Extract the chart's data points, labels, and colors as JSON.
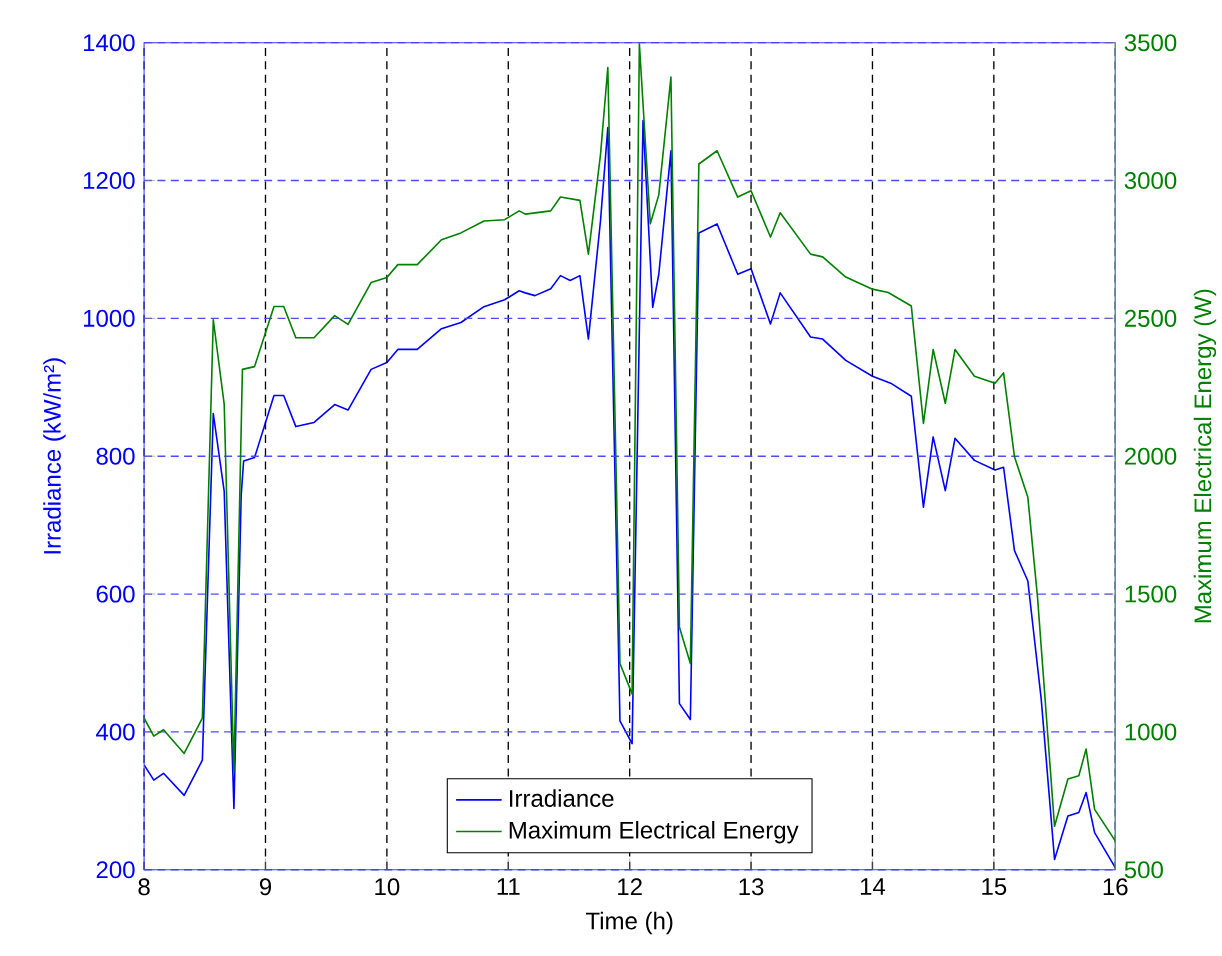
{
  "chart_data": {
    "type": "line",
    "xlabel": "Time (h)",
    "ylabel": "Irradiance (kW/m²)",
    "y2label": "Maximum Electrical Energy (W)",
    "xlim": [
      8,
      16
    ],
    "xticks": [
      8,
      9,
      10,
      11,
      12,
      13,
      14,
      15,
      16
    ],
    "ylim": [
      200,
      1400
    ],
    "yticks": [
      200,
      400,
      600,
      800,
      1000,
      1200,
      1400
    ],
    "y2lim": [
      500,
      3500
    ],
    "y2ticks": [
      500,
      1000,
      1500,
      2000,
      2500,
      3000,
      3500
    ],
    "grid": true,
    "legend": "bottom",
    "series": [
      {
        "name": "Irradiance",
        "color": "#0000ff",
        "x": [
          8.0,
          8.08,
          8.16,
          8.33,
          8.48,
          8.57,
          8.66,
          8.74,
          8.8,
          8.82,
          8.91,
          9.07,
          9.15,
          9.25,
          9.4,
          9.57,
          9.68,
          9.87,
          10.0,
          10.09,
          10.25,
          10.45,
          10.61,
          10.8,
          10.97,
          11.09,
          11.14,
          11.22,
          11.35,
          11.43,
          11.51,
          11.59,
          11.66,
          11.76,
          11.82,
          11.89,
          11.92,
          12.02,
          12.11,
          12.19,
          12.24,
          12.34,
          12.41,
          12.5,
          12.57,
          12.72,
          12.89,
          13.0,
          13.16,
          13.24,
          13.49,
          13.59,
          13.78,
          14.0,
          14.15,
          14.32,
          14.42,
          14.5,
          14.6,
          14.68,
          14.84,
          15.01,
          15.08,
          15.17,
          15.28,
          15.39,
          15.5,
          15.61,
          15.7,
          15.76,
          15.83,
          16.0
        ],
        "values": [
          352,
          330,
          340,
          308,
          359,
          862,
          749,
          289,
          744,
          793,
          798,
          888,
          888,
          843,
          849,
          875,
          867,
          926,
          936,
          955,
          955,
          985,
          994,
          1017,
          1027,
          1040,
          1037,
          1033,
          1043,
          1062,
          1055,
          1062,
          970,
          1142,
          1277,
          678,
          416,
          383,
          1287,
          1016,
          1064,
          1243,
          441,
          418,
          1124,
          1137,
          1064,
          1072,
          992,
          1037,
          973,
          970,
          939,
          916,
          906,
          887,
          726,
          828,
          750,
          826,
          794,
          780,
          784,
          663,
          619,
          448,
          215,
          278,
          283,
          312,
          254,
          203
        ]
      },
      {
        "name": "Maximum Electrical Energy",
        "color": "#008000",
        "axis": "y2",
        "x": [
          8.0,
          8.08,
          8.16,
          8.33,
          8.48,
          8.57,
          8.66,
          8.74,
          8.81,
          8.91,
          9.07,
          9.15,
          9.25,
          9.4,
          9.57,
          9.68,
          9.87,
          10.0,
          10.09,
          10.25,
          10.45,
          10.61,
          10.8,
          10.97,
          11.09,
          11.14,
          11.35,
          11.43,
          11.59,
          11.66,
          11.76,
          11.82,
          11.89,
          11.92,
          12.02,
          12.08,
          12.17,
          12.24,
          12.34,
          12.41,
          12.5,
          12.57,
          12.72,
          12.89,
          13.0,
          13.16,
          13.24,
          13.49,
          13.59,
          13.78,
          14.0,
          14.13,
          14.32,
          14.42,
          14.5,
          14.6,
          14.68,
          14.84,
          15.01,
          15.08,
          15.17,
          15.28,
          15.36,
          15.5,
          15.61,
          15.7,
          15.76,
          15.83,
          16.0
        ],
        "values": [
          1050,
          985,
          1008,
          922,
          1050,
          2495,
          2188,
          855,
          2315,
          2325,
          2543,
          2543,
          2430,
          2430,
          2510,
          2478,
          2630,
          2648,
          2695,
          2695,
          2785,
          2810,
          2853,
          2858,
          2890,
          2878,
          2890,
          2940,
          2928,
          2733,
          3095,
          3410,
          1913,
          1248,
          1138,
          3495,
          2843,
          2948,
          3375,
          1380,
          1248,
          3060,
          3108,
          2940,
          2963,
          2795,
          2883,
          2733,
          2723,
          2650,
          2606,
          2594,
          2545,
          2119,
          2387,
          2192,
          2387,
          2290,
          2265,
          2302,
          1998,
          1851,
          1487,
          658,
          829,
          841,
          938,
          719,
          605
        ]
      }
    ]
  }
}
